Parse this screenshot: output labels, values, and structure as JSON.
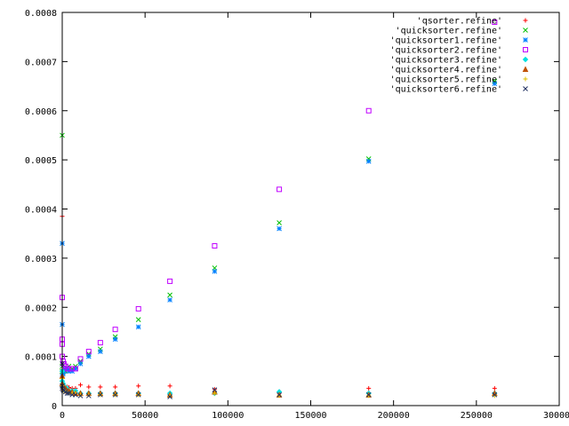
{
  "chart_data": {
    "type": "scatter",
    "title": "",
    "xlabel": "",
    "ylabel": "",
    "xlim": [
      0,
      300000
    ],
    "ylim": [
      0,
      0.0008
    ],
    "grid": false,
    "legend_position": "top-right",
    "x_ticks": [
      0,
      50000,
      100000,
      150000,
      200000,
      250000,
      300000
    ],
    "x_tick_labels": [
      "0",
      "50000",
      "100000",
      "150000",
      "200000",
      "250000",
      "300000"
    ],
    "y_ticks": [
      0,
      0.0001,
      0.0002,
      0.0003,
      0.0004,
      0.0005,
      0.0006,
      0.0007,
      0.0008
    ],
    "y_tick_labels": [
      "0",
      "0.0001",
      "0.0002",
      "0.0003",
      "0.0004",
      "0.0005",
      "0.0006",
      "0.0007",
      "0.0008"
    ],
    "series": [
      {
        "name": "'qsorter.refine'",
        "color": "#ff0000",
        "marker": "plus",
        "x": [
          0,
          0,
          0,
          500,
          1000,
          2000,
          3000,
          4000,
          6000,
          8000,
          11000,
          16000,
          23000,
          32000,
          46000,
          65000,
          92000,
          131000,
          185000,
          261000
        ],
        "y": [
          0.000385,
          6e-05,
          5e-05,
          4.5e-05,
          4e-05,
          3.8e-05,
          3.8e-05,
          3.7e-05,
          3.5e-05,
          3.5e-05,
          4.2e-05,
          3.8e-05,
          3.8e-05,
          3.8e-05,
          4e-05,
          4e-05,
          3.3e-05,
          2.5e-05,
          3.5e-05,
          3.5e-05
        ]
      },
      {
        "name": "'quicksorter.refine'",
        "color": "#00c000",
        "marker": "cross",
        "x": [
          0,
          0,
          0,
          500,
          1000,
          2000,
          3000,
          4000,
          6000,
          8000,
          11000,
          16000,
          23000,
          32000,
          46000,
          65000,
          92000,
          131000,
          185000,
          261000
        ],
        "y": [
          0.00055,
          8e-05,
          7e-05,
          6.8e-05,
          7e-05,
          7e-05,
          7.5e-05,
          8e-05,
          7.5e-05,
          8e-05,
          9e-05,
          0.000105,
          0.000115,
          0.00014,
          0.000175,
          0.000225,
          0.00028,
          0.000372,
          0.000502,
          0.00066
        ]
      },
      {
        "name": "'quicksorter1.refine'",
        "color": "#0080ff",
        "marker": "star",
        "x": [
          0,
          0,
          0,
          500,
          1000,
          2000,
          3000,
          4000,
          6000,
          8000,
          11000,
          16000,
          23000,
          32000,
          46000,
          65000,
          92000,
          131000,
          185000,
          261000
        ],
        "y": [
          0.00033,
          0.000165,
          6e-05,
          6.5e-05,
          7e-05,
          7.5e-05,
          7.5e-05,
          7e-05,
          7e-05,
          7.5e-05,
          8.5e-05,
          0.0001,
          0.00011,
          0.000135,
          0.00016,
          0.000215,
          0.000273,
          0.00036,
          0.000497,
          0.000655
        ]
      },
      {
        "name": "'quicksorter2.refine'",
        "color": "#c000ff",
        "marker": "box",
        "x": [
          0,
          0,
          0,
          0,
          500,
          1000,
          2000,
          3000,
          4000,
          6000,
          8000,
          11000,
          16000,
          23000,
          32000,
          46000,
          65000,
          92000,
          131000,
          185000,
          261000
        ],
        "y": [
          0.00022,
          0.000135,
          0.000125,
          0.0001,
          9e-05,
          8.5e-05,
          8e-05,
          7.5e-05,
          7.5e-05,
          7.5e-05,
          7.5e-05,
          9.5e-05,
          0.00011,
          0.000128,
          0.000155,
          0.000197,
          0.000253,
          0.000325,
          0.00044,
          0.0006,
          0.00078
        ]
      },
      {
        "name": "'quicksorter3.refine'",
        "color": "#00e0e0",
        "marker": "diamond",
        "x": [
          0,
          0,
          500,
          1000,
          2000,
          3000,
          4000,
          6000,
          8000,
          11000,
          16000,
          23000,
          32000,
          46000,
          65000,
          92000,
          131000,
          185000,
          261000
        ],
        "y": [
          7e-05,
          5e-05,
          4.5e-05,
          4e-05,
          3.5e-05,
          3.5e-05,
          3e-05,
          3e-05,
          3e-05,
          2.5e-05,
          2.5e-05,
          2.5e-05,
          2.5e-05,
          2.5e-05,
          2.5e-05,
          2.5e-05,
          2.8e-05,
          2.5e-05,
          2.5e-05
        ]
      },
      {
        "name": "'quicksorter4.refine'",
        "color": "#c05000",
        "marker": "triangle",
        "x": [
          0,
          0,
          500,
          1000,
          2000,
          3000,
          4000,
          6000,
          8000,
          11000,
          16000,
          23000,
          32000,
          46000,
          65000,
          92000,
          131000,
          185000,
          261000
        ],
        "y": [
          6e-05,
          4.5e-05,
          4e-05,
          3.5e-05,
          3.5e-05,
          3e-05,
          3e-05,
          2.8e-05,
          2.5e-05,
          2.5e-05,
          2.5e-05,
          2.5e-05,
          2.5e-05,
          2.5e-05,
          2.2e-05,
          2.8e-05,
          2.2e-05,
          2.2e-05,
          2.5e-05
        ]
      },
      {
        "name": "'quicksorter5.refine'",
        "color": "#e0c000",
        "marker": "plus",
        "x": [
          0,
          0,
          500,
          1000,
          2000,
          3000,
          4000,
          6000,
          8000,
          11000,
          16000,
          23000,
          32000,
          46000,
          65000,
          92000,
          131000,
          185000,
          261000
        ],
        "y": [
          5.5e-05,
          4e-05,
          3.5e-05,
          3e-05,
          3e-05,
          2.8e-05,
          2.5e-05,
          2.5e-05,
          2.5e-05,
          2.2e-05,
          2.2e-05,
          2.2e-05,
          2.2e-05,
          2.2e-05,
          2e-05,
          2.5e-05,
          2e-05,
          2e-05,
          2e-05
        ]
      },
      {
        "name": "'quicksorter6.refine'",
        "color": "#203060",
        "marker": "cross",
        "x": [
          0,
          0,
          0,
          500,
          1000,
          2000,
          3000,
          4000,
          6000,
          8000,
          11000,
          16000,
          23000,
          32000,
          46000,
          65000,
          92000,
          131000,
          185000,
          261000
        ],
        "y": [
          8.5e-05,
          4e-05,
          3.5e-05,
          3.2e-05,
          3e-05,
          2.8e-05,
          2.5e-05,
          2.5e-05,
          2.2e-05,
          2.2e-05,
          2e-05,
          2e-05,
          2.2e-05,
          2.2e-05,
          2.2e-05,
          1.8e-05,
          3.2e-05,
          2.2e-05,
          2.2e-05,
          2.2e-05
        ]
      }
    ]
  }
}
